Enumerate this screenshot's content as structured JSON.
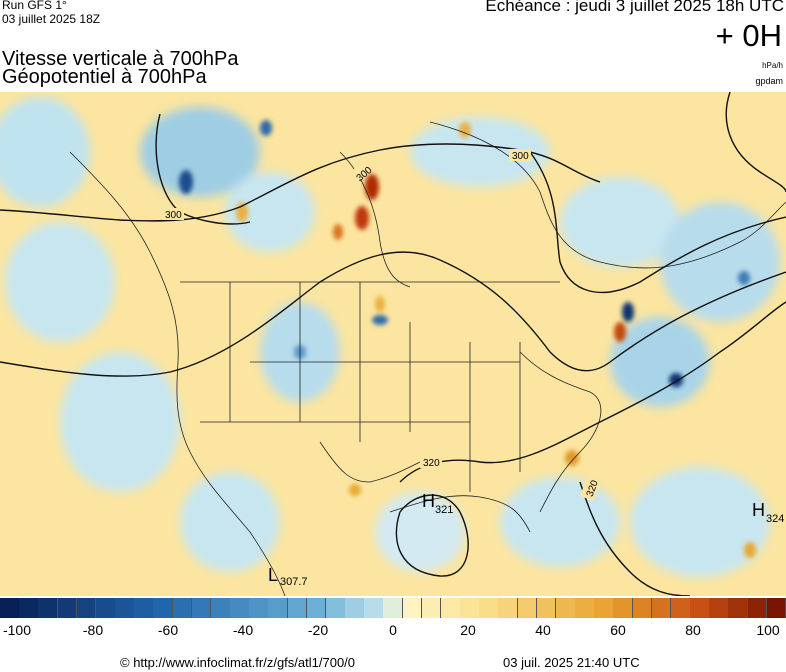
{
  "header": {
    "run_label": "Run GFS 1°",
    "run_date": "03 juillet 2025 18Z",
    "echeance": "Echéance : jeudi 3 juillet 2025 18h UTC",
    "offset": "+ 0H",
    "title_line1": "Vitesse verticale à 700hPa",
    "title_line2": "Géopotentiel à 700hPa",
    "unit_primary": "hPa/h",
    "unit_secondary": "gpdam"
  },
  "map": {
    "contour_labels": [
      "300",
      "300",
      "300",
      "320",
      "320"
    ],
    "pressure_centers": [
      {
        "letter": "H",
        "value": "321"
      },
      {
        "letter": "H",
        "value": "324"
      },
      {
        "letter": "L",
        "value": "307.7"
      }
    ],
    "colors": {
      "background": "#fbe5a0",
      "ascent_strong": "#08306b",
      "ascent_light": "#bfe3ef",
      "descent_strong": "#8b1a00",
      "descent_light": "#f8d878",
      "contour": "#111111",
      "borders": "#222222"
    }
  },
  "colorbar": {
    "tick_labels": [
      "-100",
      "-80",
      "-60",
      "-40",
      "-20",
      "0",
      "20",
      "40",
      "60",
      "80",
      "100"
    ],
    "range": [
      -100,
      100
    ],
    "steps": 41
  },
  "footer": {
    "credit": "© http://www.infoclimat.fr/z/gfs/atl1/700/0",
    "timestamp": "03 juil. 2025 21:40 UTC"
  }
}
